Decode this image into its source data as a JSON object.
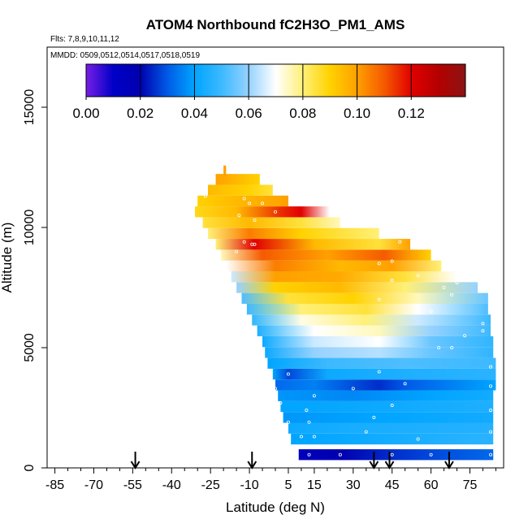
{
  "chart_data": {
    "type": "heatmap",
    "title": "ATOM4 Northbound fC2H3O_PM1_AMS",
    "subtitle_flights": "Flts: 7,8,9,10,11,12",
    "subtitle_dates": "MMDD: 0509,0512,0514,0517,0518,0519",
    "xlabel": "Latitude (deg N)",
    "ylabel": "Altitude (m)",
    "xlim": [
      -88,
      88
    ],
    "ylim": [
      0,
      17500
    ],
    "x_ticks": [
      -85,
      -70,
      -55,
      -40,
      -25,
      -10,
      5,
      15,
      30,
      45,
      60,
      75
    ],
    "y_ticks": [
      0,
      5000,
      10000,
      15000
    ],
    "colorbar": {
      "ticks": [
        "0.00",
        "0.02",
        "0.04",
        "0.06",
        "0.08",
        "0.10",
        "0.12"
      ],
      "range": [
        0.0,
        0.14
      ]
    },
    "arrow_latitudes": [
      -54,
      -9,
      38,
      44,
      67
    ],
    "rows": [
      {
        "alt": 550,
        "lat0": 9,
        "lat1": 84,
        "values": [
          [
            9,
            0.015
          ],
          [
            25,
            0.02
          ],
          [
            45,
            0.025
          ],
          [
            60,
            0.028
          ],
          [
            84,
            0.032
          ]
        ]
      },
      {
        "alt": 1200,
        "lat0": 6,
        "lat1": 84,
        "values": [
          [
            6,
            0.04
          ],
          [
            30,
            0.042
          ],
          [
            60,
            0.045
          ],
          [
            84,
            0.047
          ]
        ]
      },
      {
        "alt": 1650,
        "lat0": 5,
        "lat1": 84,
        "values": [
          [
            5,
            0.042
          ],
          [
            30,
            0.044
          ],
          [
            84,
            0.046
          ]
        ]
      },
      {
        "alt": 2100,
        "lat0": 3,
        "lat1": 84,
        "values": [
          [
            3,
            0.038
          ],
          [
            40,
            0.04
          ],
          [
            84,
            0.043
          ]
        ]
      },
      {
        "alt": 2550,
        "lat0": 2,
        "lat1": 84,
        "values": [
          [
            2,
            0.04
          ],
          [
            40,
            0.042
          ],
          [
            84,
            0.045
          ]
        ]
      },
      {
        "alt": 3000,
        "lat0": 1,
        "lat1": 84,
        "values": [
          [
            1,
            0.038
          ],
          [
            30,
            0.036
          ],
          [
            60,
            0.04
          ],
          [
            84,
            0.043
          ]
        ]
      },
      {
        "alt": 3450,
        "lat0": 0,
        "lat1": 85,
        "values": [
          [
            0,
            0.032
          ],
          [
            15,
            0.035
          ],
          [
            40,
            0.025
          ],
          [
            50,
            0.03
          ],
          [
            85,
            0.04
          ]
        ]
      },
      {
        "alt": 3900,
        "lat0": -1,
        "lat1": 85,
        "values": [
          [
            -1,
            0.04
          ],
          [
            5,
            0.028
          ],
          [
            20,
            0.042
          ],
          [
            50,
            0.045
          ],
          [
            85,
            0.047
          ]
        ]
      },
      {
        "alt": 4350,
        "lat0": -3,
        "lat1": 85,
        "values": [
          [
            -3,
            0.04
          ],
          [
            20,
            0.05
          ],
          [
            50,
            0.052
          ],
          [
            85,
            0.05
          ]
        ]
      },
      {
        "alt": 4800,
        "lat0": -4,
        "lat1": 84,
        "values": [
          [
            -4,
            0.042
          ],
          [
            15,
            0.06
          ],
          [
            40,
            0.063
          ],
          [
            60,
            0.055
          ],
          [
            84,
            0.048
          ]
        ]
      },
      {
        "alt": 5250,
        "lat0": -5,
        "lat1": 84,
        "values": [
          [
            -5,
            0.042
          ],
          [
            15,
            0.065
          ],
          [
            40,
            0.07
          ],
          [
            60,
            0.055
          ],
          [
            84,
            0.048
          ]
        ]
      },
      {
        "alt": 5700,
        "lat0": -7,
        "lat1": 83,
        "values": [
          [
            -7,
            0.045
          ],
          [
            15,
            0.07
          ],
          [
            40,
            0.075
          ],
          [
            60,
            0.06
          ],
          [
            83,
            0.05
          ]
        ]
      },
      {
        "alt": 6150,
        "lat0": -9,
        "lat1": 83,
        "values": [
          [
            -9,
            0.048
          ],
          [
            10,
            0.072
          ],
          [
            35,
            0.08
          ],
          [
            55,
            0.065
          ],
          [
            83,
            0.05
          ]
        ]
      },
      {
        "alt": 6600,
        "lat0": -11,
        "lat1": 82,
        "values": [
          [
            -11,
            0.05
          ],
          [
            10,
            0.08
          ],
          [
            35,
            0.085
          ],
          [
            55,
            0.07
          ],
          [
            82,
            0.052
          ]
        ]
      },
      {
        "alt": 7050,
        "lat0": -13,
        "lat1": 82,
        "values": [
          [
            -13,
            0.052
          ],
          [
            5,
            0.085
          ],
          [
            30,
            0.09
          ],
          [
            55,
            0.075
          ],
          [
            82,
            0.055
          ]
        ]
      },
      {
        "alt": 7500,
        "lat0": -15,
        "lat1": 78,
        "values": [
          [
            -15,
            0.06
          ],
          [
            0,
            0.09
          ],
          [
            25,
            0.095
          ],
          [
            50,
            0.08
          ],
          [
            78,
            0.06
          ]
        ]
      },
      {
        "alt": 7950,
        "lat0": -17,
        "lat1": 70,
        "values": [
          [
            -17,
            0.065
          ],
          [
            0,
            0.1
          ],
          [
            25,
            0.098
          ],
          [
            50,
            0.085
          ],
          [
            70,
            0.07
          ]
        ]
      },
      {
        "alt": 8400,
        "lat0": -19,
        "lat1": 64,
        "values": [
          [
            -19,
            0.07
          ],
          [
            0,
            0.105
          ],
          [
            25,
            0.095
          ],
          [
            45,
            0.1
          ],
          [
            64,
            0.08
          ]
        ]
      },
      {
        "alt": 8850,
        "lat0": -21,
        "lat1": 60,
        "values": [
          [
            -21,
            0.075
          ],
          [
            -5,
            0.11
          ],
          [
            20,
            0.1
          ],
          [
            42,
            0.11
          ],
          [
            60,
            0.09
          ]
        ]
      },
      {
        "alt": 9300,
        "lat0": -23,
        "lat1": 52,
        "values": [
          [
            -23,
            0.08
          ],
          [
            -8,
            0.12
          ],
          [
            15,
            0.095
          ],
          [
            40,
            0.085
          ],
          [
            52,
            0.1
          ]
        ]
      },
      {
        "alt": 9750,
        "lat0": -26,
        "lat1": 40,
        "values": [
          [
            -26,
            0.08
          ],
          [
            -10,
            0.105
          ],
          [
            10,
            0.09
          ],
          [
            40,
            0.08
          ]
        ]
      },
      {
        "alt": 10200,
        "lat0": -28,
        "lat1": 25,
        "values": [
          [
            -28,
            0.085
          ],
          [
            -10,
            0.095
          ],
          [
            10,
            0.085
          ],
          [
            25,
            0.075
          ]
        ]
      },
      {
        "alt": 10650,
        "lat0": -31,
        "lat1": 21,
        "values": [
          [
            -31,
            0.088
          ],
          [
            -15,
            0.095
          ],
          [
            2,
            0.115
          ],
          [
            10,
            0.12
          ],
          [
            21,
            0.07
          ]
        ]
      },
      {
        "alt": 11100,
        "lat0": -30,
        "lat1": 5,
        "values": [
          [
            -30,
            0.09
          ],
          [
            -15,
            0.095
          ],
          [
            5,
            0.1
          ]
        ]
      },
      {
        "alt": 11550,
        "lat0": -26,
        "lat1": -1,
        "values": [
          [
            -26,
            0.095
          ],
          [
            -10,
            0.09
          ],
          [
            -1,
            0.085
          ]
        ]
      },
      {
        "alt": 12000,
        "lat0": -23,
        "lat1": -6,
        "values": [
          [
            -23,
            0.1
          ],
          [
            -6,
            0.09
          ]
        ]
      },
      {
        "alt": 12350,
        "lat0": -20,
        "lat1": -19,
        "values": [
          [
            -20,
            0.1
          ],
          [
            -19,
            0.1
          ]
        ]
      }
    ],
    "sample_points": [
      [
        13,
        550
      ],
      [
        25,
        550
      ],
      [
        45,
        550
      ],
      [
        60,
        550
      ],
      [
        83,
        550
      ],
      [
        10,
        1300
      ],
      [
        15,
        1300
      ],
      [
        35,
        1500
      ],
      [
        55,
        1200
      ],
      [
        83,
        1500
      ],
      [
        13,
        1900
      ],
      [
        5,
        1900
      ],
      [
        38,
        2100
      ],
      [
        12,
        2400
      ],
      [
        45,
        2600
      ],
      [
        83,
        2400
      ],
      [
        2,
        2700
      ],
      [
        15,
        3000
      ],
      [
        0,
        3300
      ],
      [
        30,
        3300
      ],
      [
        50,
        3500
      ],
      [
        83,
        3400
      ],
      [
        5,
        3900
      ],
      [
        40,
        4000
      ],
      [
        83,
        4200
      ],
      [
        63,
        5000
      ],
      [
        68,
        5000
      ],
      [
        73,
        5500
      ],
      [
        80,
        5700
      ],
      [
        80,
        6000
      ],
      [
        60,
        6500
      ],
      [
        40,
        7000
      ],
      [
        65,
        7500
      ],
      [
        68,
        7200
      ],
      [
        70,
        7700
      ],
      [
        45,
        7800
      ],
      [
        55,
        8000
      ],
      [
        45,
        8600
      ],
      [
        65,
        8800
      ],
      [
        40,
        8500
      ],
      [
        -8,
        9300
      ],
      [
        -12,
        9400
      ],
      [
        -9,
        9300
      ],
      [
        -15,
        9000
      ],
      [
        48,
        9400
      ],
      [
        42,
        9700
      ],
      [
        -14,
        10500
      ],
      [
        -8,
        10300
      ],
      [
        0,
        10650
      ],
      [
        -27,
        11300
      ],
      [
        -10,
        11000
      ],
      [
        -5,
        11000
      ],
      [
        -12,
        11200
      ]
    ]
  }
}
